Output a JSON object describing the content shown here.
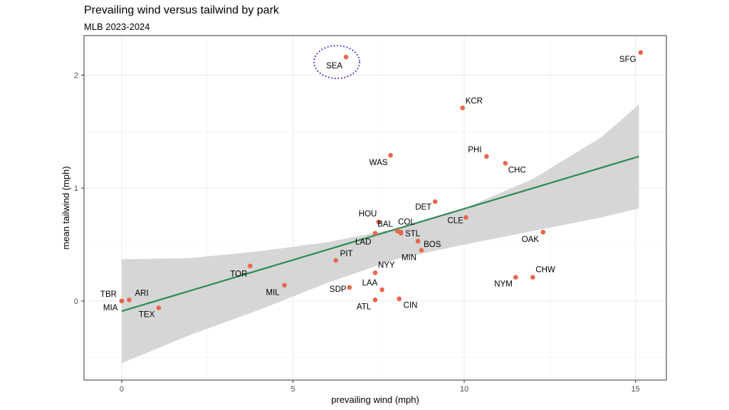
{
  "chart_data": {
    "type": "scatter",
    "title": "Prevailing wind versus tailwind by park",
    "subtitle": "MLB 2023-2024",
    "xlabel": "prevailing wind (mph)",
    "ylabel": "mean tailwind (mph)",
    "xlim": [
      -1.1,
      15.9
    ],
    "ylim": [
      -0.7,
      2.35
    ],
    "xticks": [
      "0",
      "5",
      "10",
      "15"
    ],
    "yticks": [
      "0",
      "1",
      "2"
    ],
    "grid": true,
    "points": [
      {
        "team": "TBR",
        "x": 0.0,
        "y": 0.0
      },
      {
        "team": "MIA",
        "x": 0.0,
        "y": 0.0
      },
      {
        "team": "ARI",
        "x": 0.22,
        "y": 0.01
      },
      {
        "team": "TEX",
        "x": 1.08,
        "y": -0.06
      },
      {
        "team": "TOR",
        "x": 3.75,
        "y": 0.31
      },
      {
        "team": "MIL",
        "x": 4.75,
        "y": 0.14
      },
      {
        "team": "PIT",
        "x": 6.25,
        "y": 0.36
      },
      {
        "team": "SDP",
        "x": 6.65,
        "y": 0.12
      },
      {
        "team": "SEA",
        "x": 6.55,
        "y": 2.16
      },
      {
        "team": "ATL",
        "x": 7.4,
        "y": 0.01
      },
      {
        "team": "NYY",
        "x": 7.4,
        "y": 0.25
      },
      {
        "team": "LAA",
        "x": 7.6,
        "y": 0.1
      },
      {
        "team": "LAD",
        "x": 7.4,
        "y": 0.6
      },
      {
        "team": "HOU",
        "x": 7.5,
        "y": 0.7
      },
      {
        "team": "WAS",
        "x": 7.85,
        "y": 1.29
      },
      {
        "team": "BAL",
        "x": 8.05,
        "y": 0.62
      },
      {
        "team": "COL",
        "x": 8.15,
        "y": 0.6
      },
      {
        "team": "STL",
        "x": 8.15,
        "y": 0.61
      },
      {
        "team": "CIN",
        "x": 8.1,
        "y": 0.02
      },
      {
        "team": "BOS",
        "x": 8.65,
        "y": 0.53
      },
      {
        "team": "MIN",
        "x": 8.75,
        "y": 0.45
      },
      {
        "team": "DET",
        "x": 9.15,
        "y": 0.88
      },
      {
        "team": "KCR",
        "x": 9.95,
        "y": 1.71
      },
      {
        "team": "CLE",
        "x": 10.05,
        "y": 0.74
      },
      {
        "team": "PHI",
        "x": 10.65,
        "y": 1.28
      },
      {
        "team": "CHC",
        "x": 11.2,
        "y": 1.22
      },
      {
        "team": "NYM",
        "x": 11.5,
        "y": 0.21
      },
      {
        "team": "CHW",
        "x": 12.0,
        "y": 0.21
      },
      {
        "team": "OAK",
        "x": 12.3,
        "y": 0.61
      },
      {
        "team": "SFG",
        "x": 15.15,
        "y": 2.2
      }
    ],
    "trend": {
      "x": [
        0,
        15.1
      ],
      "y": [
        -0.09,
        1.28
      ]
    },
    "confidence_band": {
      "x": [
        0,
        2,
        4,
        6,
        8,
        10,
        12,
        14,
        15.1
      ],
      "lower": [
        -0.55,
        -0.3,
        -0.08,
        0.16,
        0.37,
        0.5,
        0.62,
        0.74,
        0.82
      ],
      "upper": [
        0.37,
        0.38,
        0.44,
        0.52,
        0.64,
        0.82,
        1.08,
        1.45,
        1.74
      ]
    },
    "highlight": "SEA",
    "colors": {
      "point": "#e8664a",
      "trend": "#2e8a57",
      "band": "#d6d6d6",
      "highlight": "#1e1ed2",
      "grid": "#ebebeb"
    }
  }
}
